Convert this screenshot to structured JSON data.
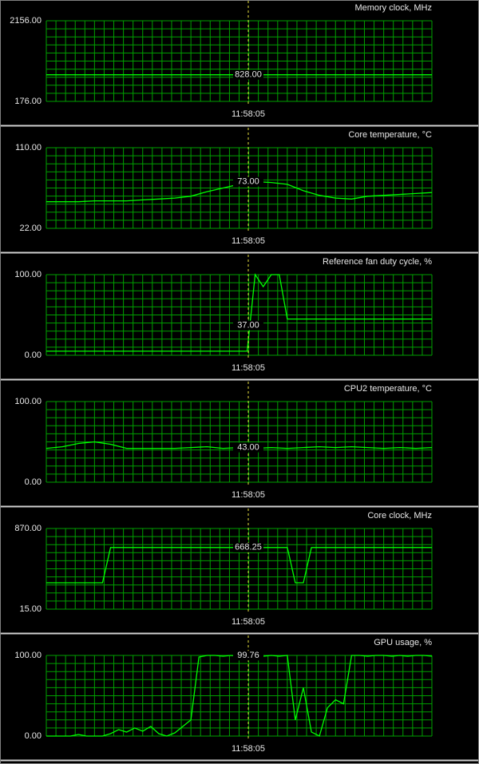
{
  "chart_data": [
    {
      "type": "line",
      "title": "Memory clock, MHz",
      "color": "#00ff00",
      "ylim": [
        176,
        2156
      ],
      "yticks": [
        {
          "value": 176,
          "label": "176.00"
        },
        {
          "value": 2156,
          "label": "2156.00"
        }
      ],
      "cursor": {
        "value": 828,
        "label": "828.00",
        "time": "11:58:05"
      },
      "values": [
        828,
        828,
        828,
        828,
        828,
        828,
        828,
        828,
        828,
        828,
        828,
        828,
        828,
        828,
        828,
        828,
        828,
        828,
        828,
        828,
        828,
        828,
        828,
        828,
        828
      ]
    },
    {
      "type": "line",
      "title": "Core temperature, °C",
      "color": "#00ff00",
      "ylim": [
        22,
        110
      ],
      "yticks": [
        {
          "value": 22,
          "label": "22.00"
        },
        {
          "value": 110,
          "label": "110.00"
        }
      ],
      "cursor": {
        "value": 73,
        "label": "73.00",
        "time": "11:58:05"
      },
      "values": [
        51,
        51,
        51,
        52,
        52,
        52,
        53,
        54,
        55,
        57,
        62,
        66,
        70,
        73,
        72,
        70,
        63,
        58,
        55,
        54,
        57,
        58,
        59,
        60,
        61
      ]
    },
    {
      "type": "line",
      "title": "Reference fan duty cycle, %",
      "color": "#00ff00",
      "ylim": [
        0,
        100
      ],
      "yticks": [
        {
          "value": 0,
          "label": "0.00"
        },
        {
          "value": 100,
          "label": "100.00"
        }
      ],
      "cursor": {
        "value": 37,
        "label": "37.00",
        "time": "11:58:05"
      },
      "values": [
        5,
        5,
        5,
        5,
        5,
        5,
        5,
        5,
        5,
        5,
        5,
        5,
        5,
        5,
        5,
        5,
        5,
        5,
        5,
        5,
        5,
        5,
        5,
        5,
        5,
        5,
        100,
        85,
        100,
        100,
        45,
        45,
        45,
        45,
        45,
        45,
        45,
        45,
        45,
        45,
        45,
        45,
        45,
        45,
        45,
        45,
        45,
        45,
        45
      ]
    },
    {
      "type": "line",
      "title": "CPU2 temperature, °C",
      "color": "#00ff00",
      "ylim": [
        0,
        100
      ],
      "yticks": [
        {
          "value": 0,
          "label": "0.00"
        },
        {
          "value": 100,
          "label": "100.00"
        }
      ],
      "cursor": {
        "value": 43,
        "label": "43.00",
        "time": "11:58:05"
      },
      "values": [
        42,
        44,
        48,
        50,
        47,
        42,
        42,
        42,
        42,
        43,
        44,
        42,
        43,
        42,
        43,
        42,
        43,
        44,
        43,
        44,
        43,
        42,
        43,
        42,
        43
      ]
    },
    {
      "type": "line",
      "title": "Core clock, MHz",
      "color": "#00ff00",
      "ylim": [
        15,
        870
      ],
      "yticks": [
        {
          "value": 15,
          "label": "15.00"
        },
        {
          "value": 870,
          "label": "870.00"
        }
      ],
      "cursor": {
        "value": 668.25,
        "label": "668.25",
        "time": "11:58:05"
      },
      "values": [
        294,
        294,
        294,
        294,
        294,
        294,
        294,
        294,
        668.25,
        668.25,
        668.25,
        668.25,
        668.25,
        668.25,
        668.25,
        668.25,
        668.25,
        668.25,
        668.25,
        668.25,
        668.25,
        668.25,
        668.25,
        668.25,
        668.25,
        668.25,
        668.25,
        668.25,
        668.25,
        668.25,
        668.25,
        294,
        294,
        668.25,
        668.25,
        668.25,
        668.25,
        668.25,
        668.25,
        668.25,
        668.25,
        668.25,
        668.25,
        668.25,
        668.25,
        668.25,
        668.25,
        668.25,
        668.25
      ]
    },
    {
      "type": "line",
      "title": "GPU usage, %",
      "color": "#00ff00",
      "ylim": [
        0,
        100
      ],
      "yticks": [
        {
          "value": 0,
          "label": "0.00"
        },
        {
          "value": 100,
          "label": "100.00"
        }
      ],
      "cursor": {
        "value": 99.76,
        "label": "99.76",
        "time": "11:58:05"
      },
      "values": [
        0,
        0,
        0,
        0,
        2,
        0,
        0,
        0,
        3,
        8,
        5,
        10,
        6,
        12,
        3,
        0,
        4,
        12,
        20,
        98,
        100,
        100,
        99,
        100,
        99,
        100,
        99,
        99,
        100,
        99,
        100,
        20,
        60,
        5,
        0,
        35,
        45,
        40,
        100,
        100,
        99,
        100,
        100,
        99,
        100,
        99,
        100,
        100,
        99
      ]
    }
  ]
}
